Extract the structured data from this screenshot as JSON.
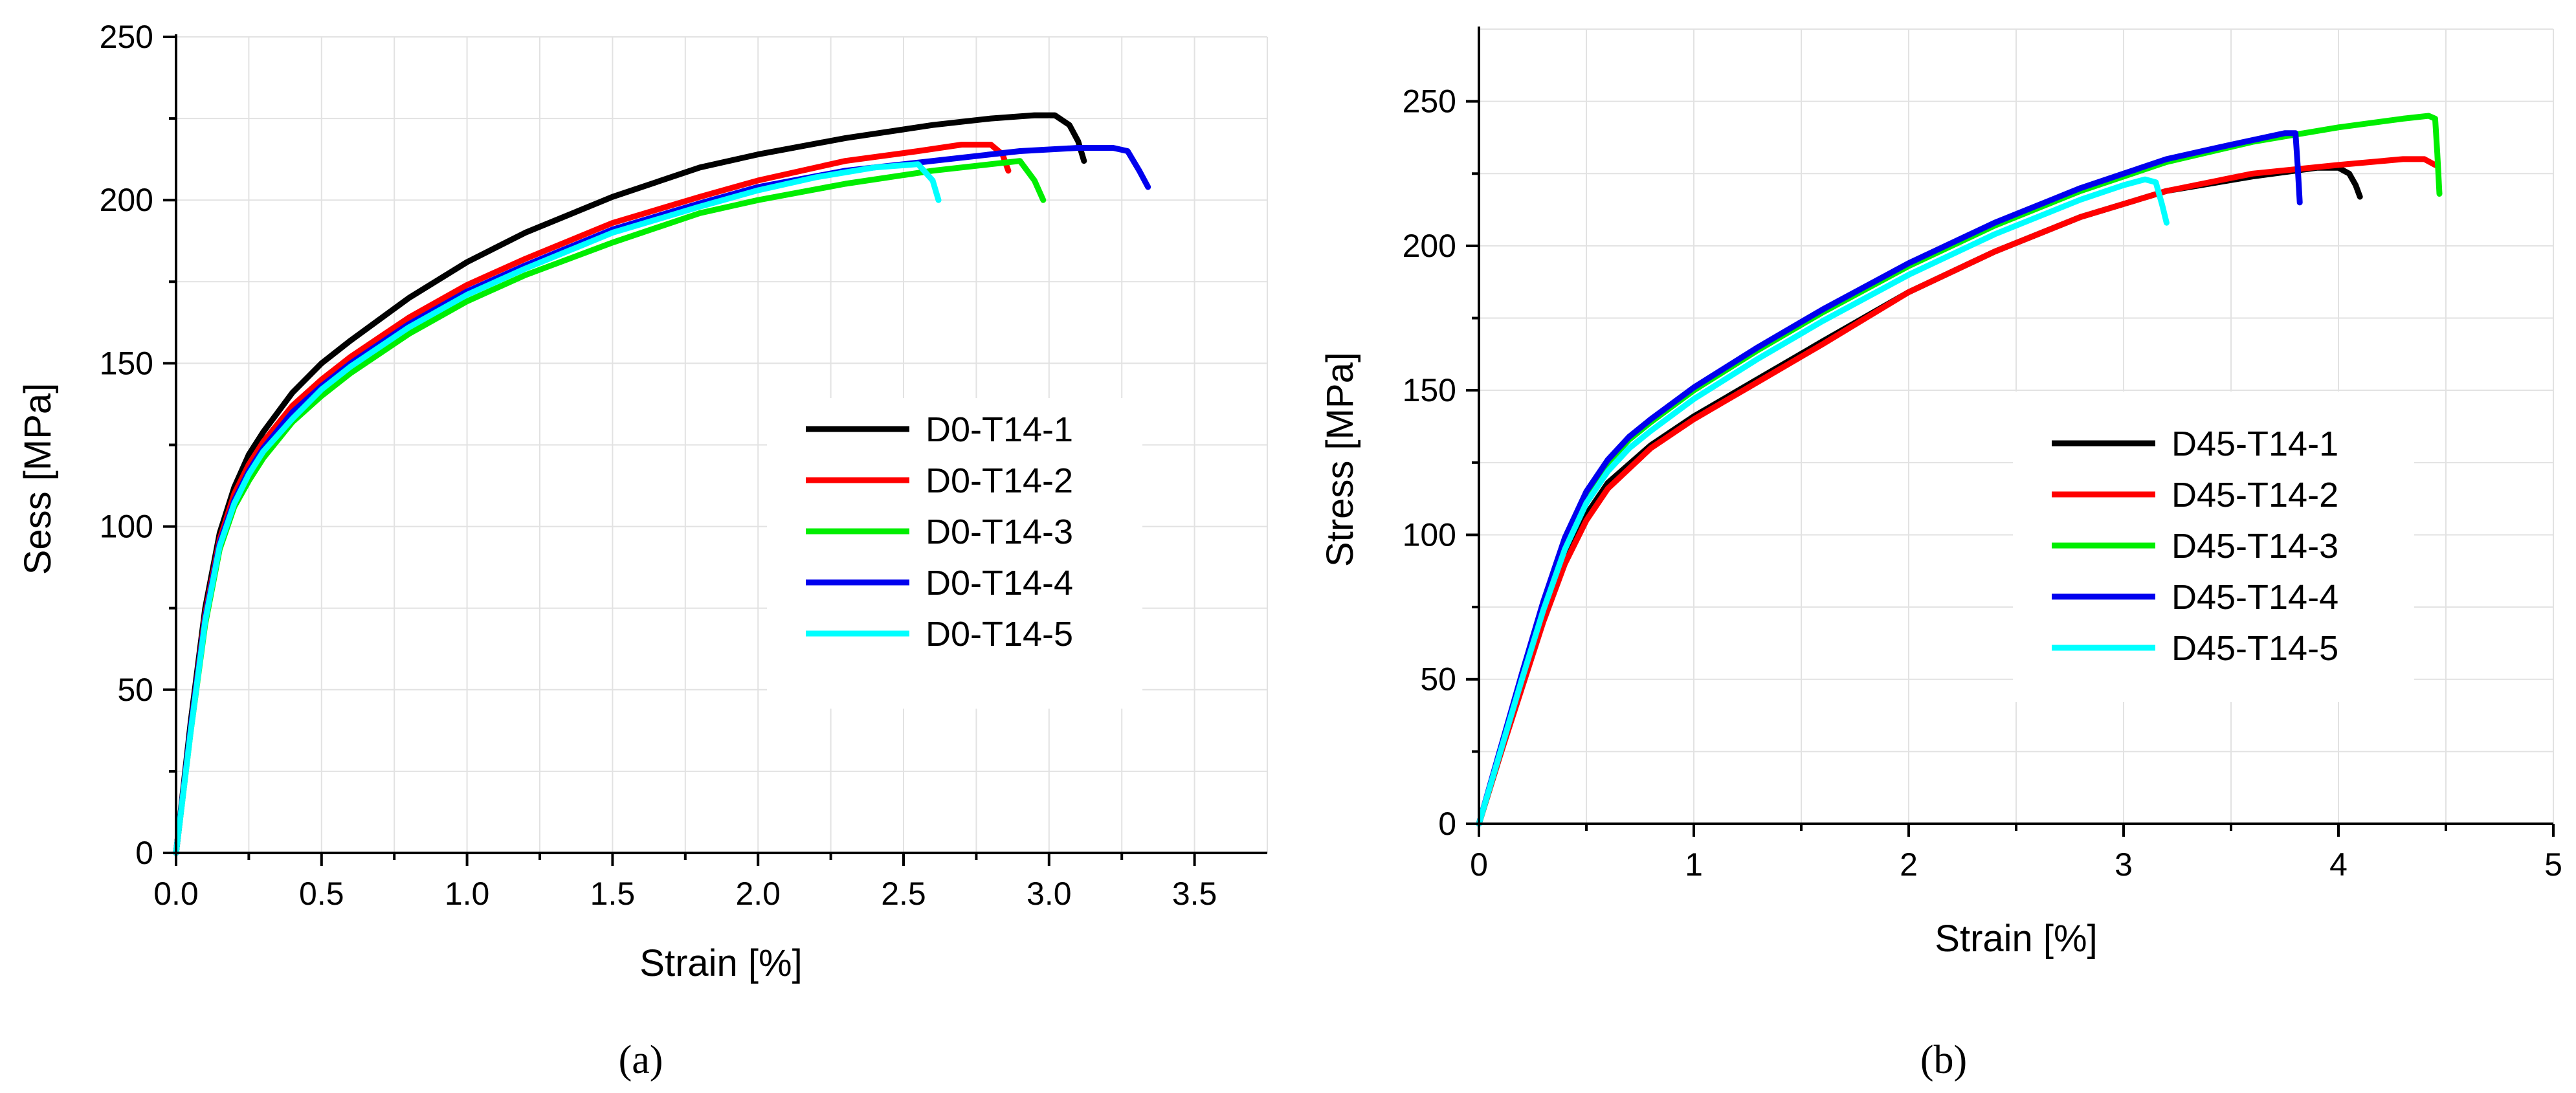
{
  "chart_data": [
    {
      "type": "line",
      "panel": "a",
      "xlabel": "Strain [%]",
      "ylabel": "Sess [MPa]",
      "xlim": [
        0,
        3.75
      ],
      "ylim": [
        0,
        250
      ],
      "xticks": [
        "0.0",
        "0.5",
        "1.0",
        "1.5",
        "2.0",
        "2.5",
        "3.0",
        "3.5"
      ],
      "xtick_values": [
        0,
        0.5,
        1.0,
        1.5,
        2.0,
        2.5,
        3.0,
        3.5
      ],
      "yticks": [
        "0",
        "50",
        "100",
        "150",
        "200",
        "250"
      ],
      "ytick_values": [
        0,
        50,
        100,
        150,
        200,
        250
      ],
      "grid": true,
      "legend_position": "center-right",
      "series": [
        {
          "name": "D0-T14-1",
          "color": "#000000",
          "x": [
            0,
            0.05,
            0.1,
            0.15,
            0.2,
            0.25,
            0.3,
            0.4,
            0.5,
            0.6,
            0.8,
            1.0,
            1.2,
            1.5,
            1.8,
            2.0,
            2.3,
            2.6,
            2.8,
            2.95,
            3.02,
            3.07,
            3.1,
            3.12
          ],
          "y": [
            0,
            40,
            75,
            98,
            112,
            122,
            129,
            141,
            150,
            157,
            170,
            181,
            190,
            201,
            210,
            214,
            219,
            223,
            225,
            226,
            226,
            223,
            218,
            212
          ]
        },
        {
          "name": "D0-T14-2",
          "color": "#ff0000",
          "x": [
            0,
            0.05,
            0.1,
            0.15,
            0.2,
            0.25,
            0.3,
            0.4,
            0.5,
            0.6,
            0.8,
            1.0,
            1.2,
            1.5,
            1.8,
            2.0,
            2.3,
            2.55,
            2.7,
            2.8,
            2.84,
            2.86
          ],
          "y": [
            0,
            38,
            73,
            96,
            110,
            119,
            126,
            137,
            145,
            152,
            164,
            174,
            182,
            193,
            201,
            206,
            212,
            215,
            217,
            217,
            214,
            209
          ]
        },
        {
          "name": "D0-T14-3",
          "color": "#00ee00",
          "x": [
            0,
            0.05,
            0.1,
            0.15,
            0.2,
            0.25,
            0.3,
            0.4,
            0.5,
            0.6,
            0.8,
            1.0,
            1.2,
            1.5,
            1.8,
            2.0,
            2.3,
            2.6,
            2.8,
            2.9,
            2.95,
            2.98
          ],
          "y": [
            0,
            37,
            70,
            93,
            106,
            114,
            121,
            132,
            140,
            147,
            159,
            169,
            177,
            187,
            196,
            200,
            205,
            209,
            211,
            212,
            206,
            200
          ]
        },
        {
          "name": "D0-T14-4",
          "color": "#0000ee",
          "x": [
            0,
            0.05,
            0.1,
            0.15,
            0.2,
            0.25,
            0.3,
            0.4,
            0.5,
            0.6,
            0.8,
            1.0,
            1.2,
            1.5,
            1.8,
            2.0,
            2.3,
            2.6,
            2.9,
            3.1,
            3.22,
            3.27,
            3.31,
            3.34
          ],
          "y": [
            0,
            38,
            72,
            95,
            108,
            117,
            124,
            135,
            143,
            150,
            162,
            172,
            180,
            191,
            199,
            204,
            209,
            212,
            215,
            216,
            216,
            215,
            209,
            204
          ]
        },
        {
          "name": "D0-T14-5",
          "color": "#00ffff",
          "x": [
            0,
            0.05,
            0.1,
            0.15,
            0.2,
            0.25,
            0.3,
            0.4,
            0.5,
            0.6,
            0.8,
            1.0,
            1.2,
            1.5,
            1.8,
            2.0,
            2.2,
            2.4,
            2.55,
            2.6,
            2.62
          ],
          "y": [
            0,
            37,
            71,
            94,
            107,
            116,
            123,
            133,
            142,
            149,
            161,
            171,
            179,
            190,
            198,
            203,
            207,
            210,
            211,
            206,
            200
          ]
        }
      ]
    },
    {
      "type": "line",
      "panel": "b",
      "xlabel": "Strain [%]",
      "ylabel": "Stress [MPa]",
      "xlim": [
        0,
        5
      ],
      "ylim": [
        0,
        275
      ],
      "xticks": [
        "0",
        "1",
        "2",
        "3",
        "4",
        "5"
      ],
      "xtick_values": [
        0,
        1,
        2,
        3,
        4,
        5
      ],
      "yticks": [
        "0",
        "50",
        "100",
        "150",
        "200",
        "250"
      ],
      "ytick_values": [
        0,
        50,
        100,
        150,
        200,
        250
      ],
      "grid": true,
      "legend_position": "center-right",
      "series": [
        {
          "name": "D45-T14-1",
          "color": "#000000",
          "x": [
            0,
            0.1,
            0.2,
            0.3,
            0.4,
            0.5,
            0.6,
            0.8,
            1.0,
            1.3,
            1.6,
            2.0,
            2.4,
            2.8,
            3.2,
            3.6,
            3.9,
            4.0,
            4.05,
            4.08,
            4.1
          ],
          "y": [
            0,
            24,
            48,
            71,
            91,
            107,
            118,
            131,
            141,
            154,
            167,
            184,
            198,
            210,
            219,
            224,
            227,
            227,
            225,
            221,
            217
          ]
        },
        {
          "name": "D45-T14-2",
          "color": "#ff0000",
          "x": [
            0,
            0.1,
            0.2,
            0.3,
            0.4,
            0.5,
            0.6,
            0.8,
            1.0,
            1.3,
            1.6,
            2.0,
            2.4,
            2.8,
            3.2,
            3.6,
            4.0,
            4.3,
            4.4,
            4.45
          ],
          "y": [
            0,
            24,
            47,
            70,
            90,
            105,
            116,
            130,
            140,
            153,
            166,
            184,
            198,
            210,
            219,
            225,
            228,
            230,
            230,
            228
          ]
        },
        {
          "name": "D45-T14-3",
          "color": "#00ee00",
          "x": [
            0,
            0.1,
            0.2,
            0.3,
            0.4,
            0.5,
            0.6,
            0.7,
            0.8,
            1.0,
            1.3,
            1.6,
            2.0,
            2.4,
            2.8,
            3.2,
            3.6,
            4.0,
            4.3,
            4.42,
            4.45,
            4.46,
            4.47
          ],
          "y": [
            0,
            25,
            51,
            76,
            98,
            114,
            125,
            133,
            139,
            150,
            164,
            177,
            193,
            207,
            219,
            229,
            236,
            241,
            244,
            245,
            244,
            232,
            218
          ]
        },
        {
          "name": "D45-T14-4",
          "color": "#0000ee",
          "x": [
            0,
            0.1,
            0.2,
            0.3,
            0.4,
            0.5,
            0.6,
            0.7,
            0.8,
            1.0,
            1.3,
            1.6,
            2.0,
            2.4,
            2.8,
            3.2,
            3.5,
            3.75,
            3.8,
            3.81,
            3.82
          ],
          "y": [
            0,
            26,
            52,
            77,
            99,
            115,
            126,
            134,
            140,
            151,
            165,
            178,
            194,
            208,
            220,
            230,
            235,
            239,
            239,
            228,
            215
          ]
        },
        {
          "name": "D45-T14-5",
          "color": "#00ffff",
          "x": [
            0,
            0.1,
            0.2,
            0.3,
            0.4,
            0.5,
            0.6,
            0.7,
            0.8,
            1.0,
            1.3,
            1.6,
            2.0,
            2.4,
            2.8,
            3.0,
            3.1,
            3.15,
            3.18,
            3.2
          ],
          "y": [
            0,
            25,
            50,
            74,
            95,
            111,
            122,
            130,
            136,
            147,
            161,
            174,
            190,
            204,
            216,
            221,
            223,
            222,
            214,
            208
          ]
        }
      ]
    }
  ],
  "panel_labels": [
    "(a)",
    "(b)"
  ]
}
